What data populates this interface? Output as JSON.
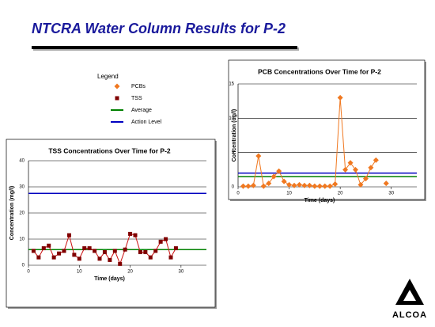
{
  "title": "NTCRA Water Column Results for P-2",
  "legend": {
    "title": "Legend",
    "items": [
      {
        "label": "PCBs",
        "marker": "diamond",
        "color": "#f07820"
      },
      {
        "label": "TSS",
        "marker": "square",
        "color": "#800000"
      },
      {
        "label": "Average",
        "marker": "line",
        "color": "#008000"
      },
      {
        "label": "Action Level",
        "marker": "line",
        "color": "#0000c0"
      }
    ]
  },
  "logo": "ALCOA",
  "chart_data": [
    {
      "type": "line",
      "title": "TSS Concentrations Over Time for P-2",
      "x_label": "Time (days)",
      "y_label": "Concentration (mg/l)",
      "xlim": [
        0,
        35
      ],
      "xticks": [
        0,
        10,
        20,
        30
      ],
      "ylim": [
        0,
        40
      ],
      "yticks": [
        0,
        10,
        20,
        30,
        40
      ],
      "grid": true,
      "x": [
        1,
        2,
        3,
        4,
        5,
        6,
        7,
        8,
        9,
        10,
        11,
        12,
        13,
        14,
        15,
        16,
        17,
        18,
        19,
        20,
        21,
        22,
        23,
        24,
        25,
        26,
        27,
        28,
        29
      ],
      "series": [
        {
          "name": "TSS",
          "color": "#cc1010",
          "marker": "square",
          "marker_color": "#800000",
          "values": [
            5.5,
            3,
            6.5,
            7.5,
            3,
            4.5,
            5.5,
            11.5,
            4,
            2.5,
            6.5,
            6.5,
            5.5,
            2.5,
            5,
            2,
            5.5,
            0.5,
            6,
            12,
            11.5,
            5,
            5,
            3,
            5.5,
            9,
            10,
            3,
            6.5
          ]
        }
      ],
      "average": 6,
      "average_color": "#008000",
      "action_level": 27.5,
      "action_level_color": "#0000c0"
    },
    {
      "type": "line",
      "title": "PCB Concentrations Over Time for P-2",
      "x_label": "Time (days)",
      "y_label": "Concentration (ug/l)",
      "xlim": [
        0,
        35
      ],
      "xticks": [
        0,
        10,
        20,
        30
      ],
      "ylim": [
        0,
        15
      ],
      "yticks": [
        0,
        5,
        10,
        15
      ],
      "grid": true,
      "x": [
        1,
        2,
        3,
        4,
        5,
        6,
        7,
        8,
        9,
        10,
        11,
        12,
        13,
        14,
        15,
        16,
        17,
        18,
        19,
        20,
        21,
        22,
        23,
        24,
        25,
        26,
        27,
        28,
        29
      ],
      "series": [
        {
          "name": "PCBs",
          "color": "#f07820",
          "marker": "diamond",
          "marker_color": "#f07820",
          "values": [
            0.1,
            0.1,
            0.2,
            4.5,
            0.1,
            0.5,
            1.5,
            2.3,
            0.8,
            0.3,
            0.2,
            0.3,
            0.2,
            0.2,
            0.1,
            0.1,
            0.1,
            0.1,
            0.4,
            13,
            2.5,
            3.5,
            2.5,
            0.3,
            1.2,
            2.8,
            3.9,
            null,
            0.5
          ]
        }
      ],
      "average": 1.5,
      "average_color": "#008000",
      "action_level": 2,
      "action_level_color": "#0000c0"
    }
  ]
}
